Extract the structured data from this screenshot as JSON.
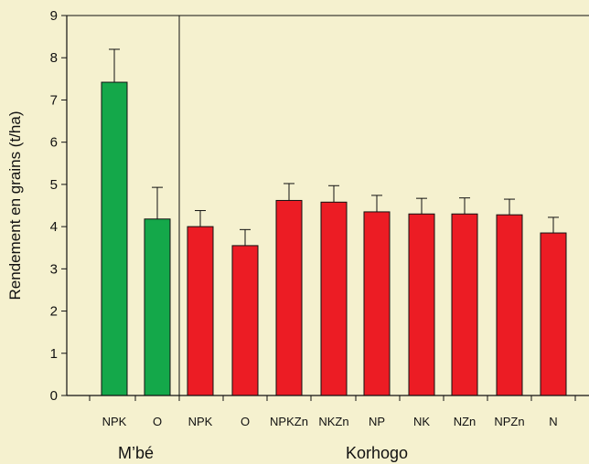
{
  "chart_data": {
    "type": "bar",
    "ylabel": "Rendement en grains (t/ha)",
    "xlabel": "",
    "ylim": [
      0,
      9
    ],
    "yticks": [
      0,
      1,
      2,
      3,
      4,
      5,
      6,
      7,
      8,
      9
    ],
    "grid": false,
    "categories": [
      "NPK",
      "O",
      "NPK",
      "O",
      "NPKZn",
      "NKZn",
      "NP",
      "NK",
      "NZn",
      "NPZn",
      "N"
    ],
    "values": [
      7.42,
      4.18,
      4.0,
      3.55,
      4.62,
      4.58,
      4.35,
      4.3,
      4.3,
      4.28,
      3.85
    ],
    "error_upper": [
      8.2,
      4.93,
      4.38,
      3.93,
      5.02,
      4.97,
      4.74,
      4.67,
      4.68,
      4.65,
      4.22
    ],
    "bar_colors": [
      "#14a84a",
      "#14a84a",
      "#ec1c24",
      "#ec1c24",
      "#ec1c24",
      "#ec1c24",
      "#ec1c24",
      "#ec1c24",
      "#ec1c24",
      "#ec1c24",
      "#ec1c24"
    ],
    "groups": [
      {
        "label": "M’bé",
        "start": 0,
        "end": 1
      },
      {
        "label": "Korhogo",
        "start": 2,
        "end": 10
      }
    ],
    "colors": {
      "mbe": "#14a84a",
      "korhogo": "#ec1c24",
      "background": "#f5f1cf"
    }
  }
}
